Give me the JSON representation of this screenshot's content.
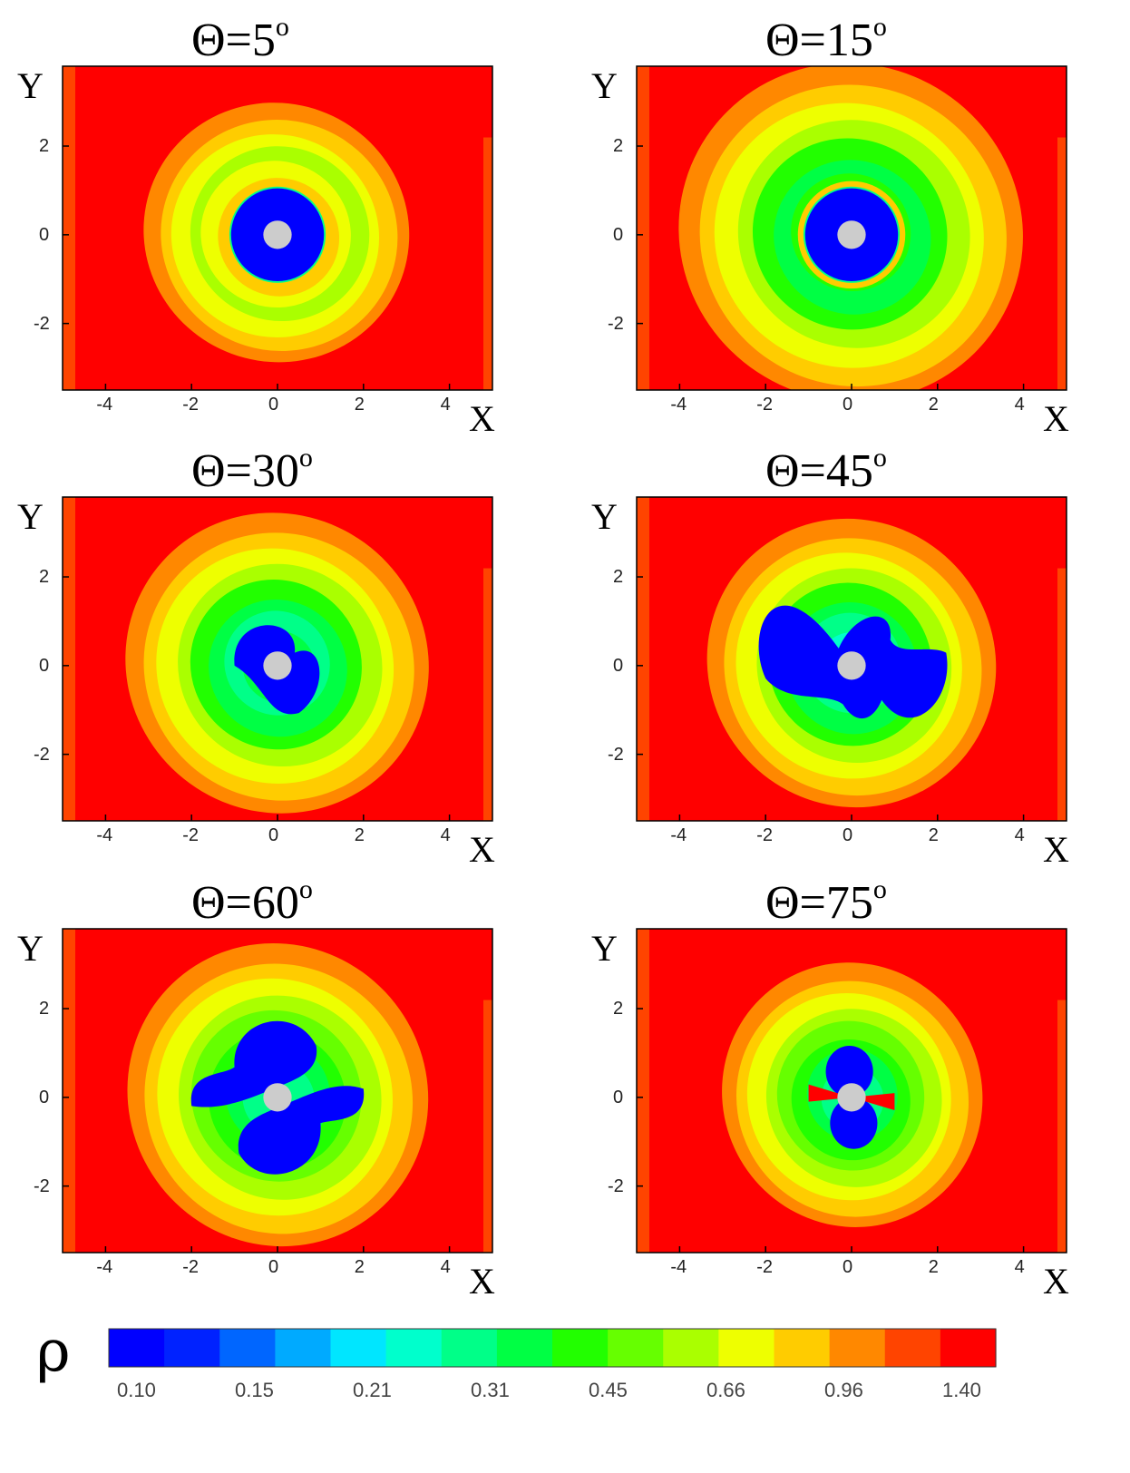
{
  "chart_data": {
    "type": "heatmap",
    "panels": [
      {
        "title_prefix": "Θ=",
        "angle": "5",
        "degree": "o"
      },
      {
        "title_prefix": "Θ=",
        "angle": "15",
        "degree": "o"
      },
      {
        "title_prefix": "Θ=",
        "angle": "30",
        "degree": "o"
      },
      {
        "title_prefix": "Θ=",
        "angle": "45",
        "degree": "o"
      },
      {
        "title_prefix": "Θ=",
        "angle": "60",
        "degree": "o"
      },
      {
        "title_prefix": "Θ=",
        "angle": "75",
        "degree": "o"
      }
    ],
    "xlabel": "X",
    "ylabel": "Y",
    "xlim": [
      -5,
      5
    ],
    "ylim": [
      -3.5,
      3.8
    ],
    "x_ticks": [
      "-4",
      "-2",
      "0",
      "2",
      "4"
    ],
    "y_ticks": [
      "2",
      "0",
      "-2"
    ],
    "colorbar": {
      "title": "ρ",
      "tick_labels": [
        "0.10",
        "0.15",
        "0.21",
        "0.31",
        "0.45",
        "0.66",
        "0.96",
        "1.40"
      ],
      "colors": [
        "#0000ff",
        "#0022ff",
        "#0066ff",
        "#00aaff",
        "#00e6ff",
        "#00ffcc",
        "#00ff88",
        "#00ff44",
        "#22ff00",
        "#66ff00",
        "#aaff00",
        "#eeff00",
        "#ffcc00",
        "#ff8800",
        "#ff4400",
        "#ff0000"
      ]
    },
    "core_color": "#cccccc"
  }
}
